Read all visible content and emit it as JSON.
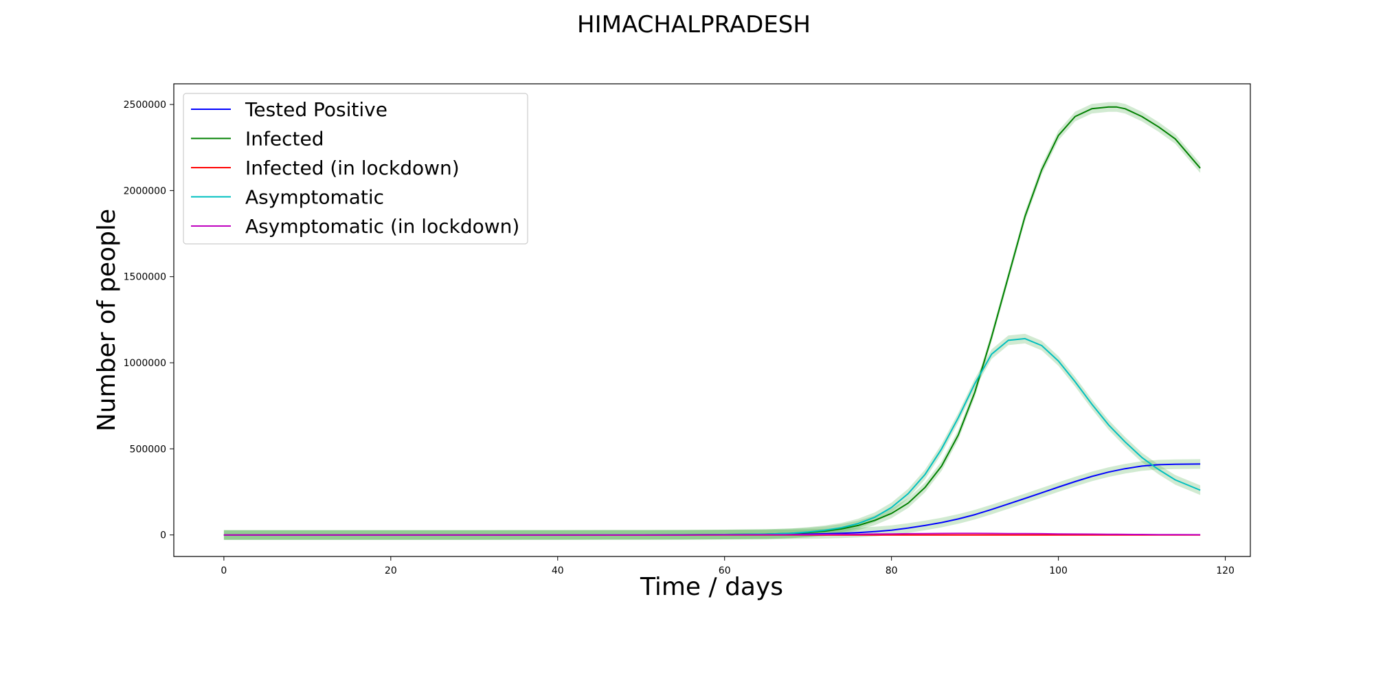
{
  "chart_data": {
    "type": "line",
    "title": "HIMACHALPRADESH",
    "xlabel": "Time / days",
    "ylabel": "Number of people",
    "xlim": [
      -6,
      123
    ],
    "ylim": [
      -125000,
      2620000
    ],
    "x_ticks": [
      0,
      20,
      40,
      60,
      80,
      100,
      120
    ],
    "x_tick_labels": [
      "0",
      "20",
      "40",
      "60",
      "80",
      "100",
      "120"
    ],
    "y_ticks": [
      0,
      500000,
      1000000,
      1500000,
      2000000,
      2500000
    ],
    "y_tick_labels": [
      "0",
      "500000",
      "1000000",
      "1500000",
      "2000000",
      "2500000"
    ],
    "grid": false,
    "legend_position": "top-left",
    "band_color": "#2ca02c",
    "x": [
      0,
      10,
      20,
      30,
      40,
      50,
      55,
      60,
      65,
      68,
      70,
      72,
      74,
      76,
      78,
      80,
      82,
      84,
      86,
      88,
      90,
      92,
      94,
      96,
      98,
      100,
      102,
      104,
      106,
      107,
      108,
      110,
      112,
      114,
      117
    ],
    "series": [
      {
        "name": "Tested Positive",
        "color": "#0000ff",
        "band": true,
        "values": [
          0,
          0,
          0,
          0,
          50,
          200,
          400,
          1000,
          2000,
          3500,
          5000,
          7000,
          10000,
          14000,
          20000,
          28000,
          40000,
          55000,
          72000,
          93000,
          118000,
          148000,
          180000,
          212000,
          245000,
          278000,
          310000,
          340000,
          365000,
          375000,
          385000,
          400000,
          408000,
          411000,
          412000
        ]
      },
      {
        "name": "Infected",
        "color": "#008000",
        "band": true,
        "values": [
          0,
          0,
          0,
          0,
          100,
          500,
          1000,
          2500,
          5000,
          9000,
          14000,
          22000,
          35000,
          55000,
          85000,
          125000,
          185000,
          275000,
          400000,
          580000,
          830000,
          1150000,
          1500000,
          1850000,
          2120000,
          2320000,
          2430000,
          2475000,
          2485000,
          2485000,
          2475000,
          2430000,
          2370000,
          2300000,
          2130000
        ]
      },
      {
        "name": "Infected (in lockdown)",
        "color": "#ff0000",
        "band": false,
        "values": [
          0,
          0,
          0,
          0,
          0,
          0,
          0,
          0,
          0,
          0,
          0,
          0,
          0,
          0,
          0,
          0,
          0,
          0,
          0,
          0,
          0,
          0,
          0,
          0,
          0,
          0,
          0,
          0,
          0,
          0,
          0,
          0,
          0,
          0,
          0
        ]
      },
      {
        "name": "Asymptomatic",
        "color": "#00bfbf",
        "band": true,
        "values": [
          0,
          0,
          0,
          0,
          100,
          500,
          1000,
          2500,
          5000,
          10000,
          17000,
          27000,
          42000,
          66000,
          103000,
          160000,
          240000,
          350000,
          500000,
          680000,
          880000,
          1050000,
          1130000,
          1140000,
          1100000,
          1010000,
          890000,
          760000,
          640000,
          590000,
          540000,
          450000,
          380000,
          320000,
          260000
        ]
      },
      {
        "name": "Asymptomatic (in lockdown)",
        "color": "#bf00bf",
        "band": false,
        "values": [
          0,
          0,
          0,
          0,
          0,
          0,
          0,
          500,
          1000,
          1500,
          2000,
          2500,
          3000,
          4000,
          5000,
          6000,
          7000,
          8000,
          8500,
          9000,
          9000,
          8500,
          8000,
          7500,
          7000,
          6000,
          5000,
          4500,
          4000,
          3500,
          3000,
          2500,
          2000,
          1500,
          1000
        ]
      }
    ]
  }
}
